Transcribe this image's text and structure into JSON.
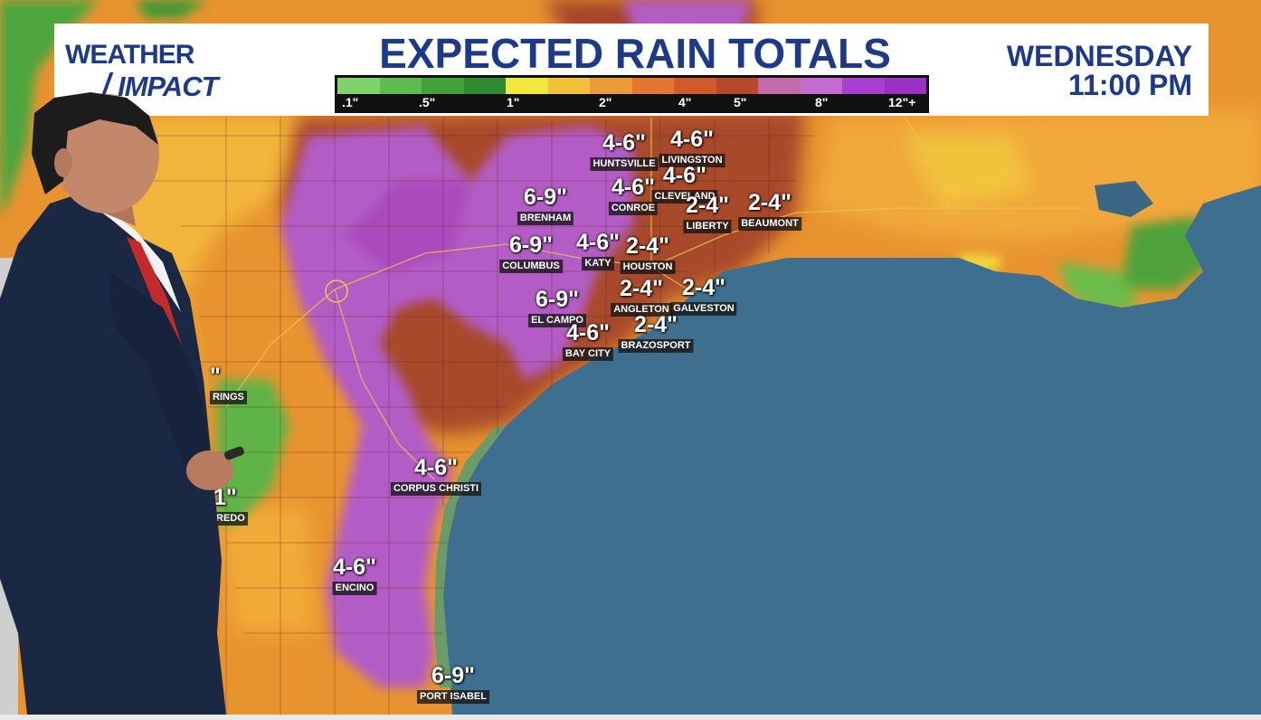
{
  "header": {
    "logo_line1": "WEATHER",
    "logo_line2": "IMPACT",
    "title": "EXPECTED RAIN TOTALS",
    "day": "WEDNESDAY",
    "time": "11:00 PM"
  },
  "legend": {
    "colors": [
      "#7ed36a",
      "#5cbc4e",
      "#3fa33a",
      "#2f8a2f",
      "#f0e83c",
      "#f3c03a",
      "#ee9a35",
      "#e4762e",
      "#d25a2a",
      "#b9472b",
      "#c46aa8",
      "#c46ad0",
      "#a93fd2",
      "#9a30c4"
    ],
    "ticks": [
      ".1\"",
      ".5\"",
      "1\"",
      "2\"",
      "4\"",
      "5\"",
      "8\"",
      "12\"+"
    ]
  },
  "colors": {
    "brand": "#1d3a8a",
    "ocean": "#3d6e8e",
    "heavy": "#b65bc4",
    "moderate": "#a8452c",
    "light": "#e1862f",
    "lighter": "#f2b23a",
    "green": "#4e9f3d"
  },
  "locations": [
    {
      "amount": "4-6\"",
      "city": "HUNTSVILLE"
    },
    {
      "amount": "4-6\"",
      "city": "LIVINGSTON"
    },
    {
      "amount": "4-6\"",
      "city": "CLEVELAND"
    },
    {
      "amount": "4-6\"",
      "city": "CONROE"
    },
    {
      "amount": "6-9\"",
      "city": "BRENHAM"
    },
    {
      "amount": "2-4\"",
      "city": "LIBERTY"
    },
    {
      "amount": "2-4\"",
      "city": "BEAUMONT"
    },
    {
      "amount": "6-9\"",
      "city": "COLUMBUS"
    },
    {
      "amount": "4-6\"",
      "city": "KATY"
    },
    {
      "amount": "2-4\"",
      "city": "HOUSTON"
    },
    {
      "amount": "2-4\"",
      "city": "ANGLETON"
    },
    {
      "amount": "2-4\"",
      "city": "GALVESTON"
    },
    {
      "amount": "6-9\"",
      "city": "EL CAMPO"
    },
    {
      "amount": "4-6\"",
      "city": "BAY CITY"
    },
    {
      "amount": "2-4\"",
      "city": "BRAZOSPORT"
    },
    {
      "amount": "4-6\"",
      "city": "CORPUS CHRISTI"
    },
    {
      "amount": "4-6\"",
      "city": "ENCINO"
    },
    {
      "amount": "6-9\"",
      "city": "PORT ISABEL"
    }
  ],
  "partial_labels": [
    {
      "amount": "\"",
      "city": "RINGS"
    },
    {
      "amount": "1\"",
      "city": "REDO"
    }
  ]
}
